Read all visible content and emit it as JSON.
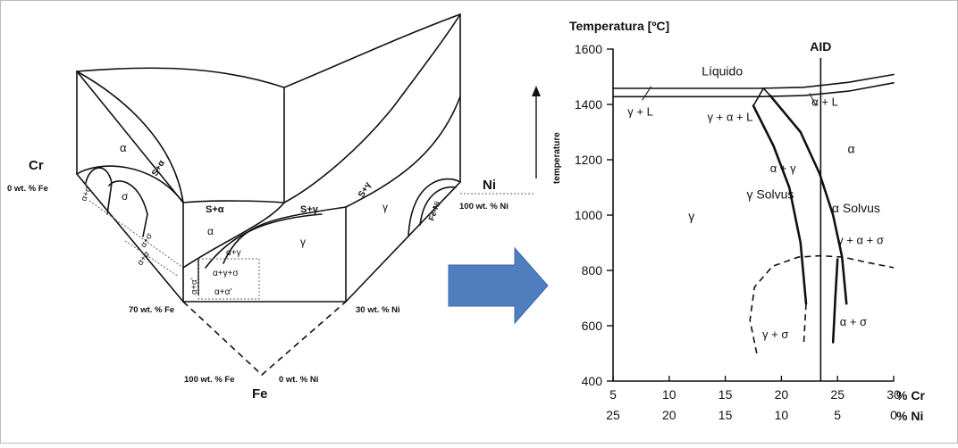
{
  "ternary": {
    "corner_cr_label": "Cr",
    "corner_cr_sub": "0 wt. % Fe",
    "corner_ni_label": "Ni",
    "corner_ni_sub": "100 wt. % Ni",
    "corner_fe_label": "Fe",
    "fe_left_sub": "100 wt. % Fe",
    "fe_right_sub": "0 wt. % Ni",
    "left_front_label": "70 wt. % Fe",
    "right_front_label": "30 wt. % Ni",
    "temperature_label": "temperature",
    "regions": {
      "s_alpha_top": "S+α",
      "alpha_top": "α",
      "alpha_sigma": "α+σ",
      "sigma": "σ",
      "alpha_sigma_b": "α+σ",
      "alpha_sigma_c": "α+σ",
      "s_alpha": "S+α",
      "s_gamma": "S+γ",
      "alpha_front": "α",
      "alpha_gamma": "α+γ",
      "gamma_front": "γ",
      "alpha_alpha_prime_v": "α+α'",
      "alpha_gamma_sigma": "α+γ+σ",
      "alpha_alpha_prime": "α+α'",
      "s_gamma_right": "S+γ",
      "gamma_right": "γ",
      "fe_ni": "Fe-Ni"
    }
  },
  "arrow": {
    "color": "#4f7fbf"
  },
  "chart_data": {
    "type": "phase-diagram",
    "ylabel": "Temperatura [ºC]",
    "ylim": [
      400,
      1600
    ],
    "yticks": [
      400,
      600,
      800,
      1000,
      1200,
      1400,
      1600
    ],
    "xlim": [
      5,
      30
    ],
    "xticks_cr": [
      5,
      10,
      15,
      20,
      25,
      30
    ],
    "xticks_ni": [
      25,
      20,
      15,
      10,
      5,
      0
    ],
    "xlabel_cr": "% Cr",
    "xlabel_ni": "% Ni",
    "aid_label": "AID",
    "aid_cr": 23.5,
    "region_labels": {
      "liquid": "Líquido",
      "gamma_l": "γ + L",
      "gamma_alpha_l": "γ + α + L",
      "alpha_l": "α + L",
      "alpha": "α",
      "alpha_gamma": "α + γ",
      "gamma_solvus": "γ  Solvus",
      "gamma": "γ",
      "alpha_solvus": "α  Solvus",
      "gamma_alpha_sigma": "γ + α + σ",
      "gamma_sigma": "γ + σ",
      "alpha_sigma": "α + σ"
    },
    "boundaries": {
      "liquidus_upper": [
        [
          5,
          1458
        ],
        [
          18,
          1458
        ],
        [
          22,
          1462
        ],
        [
          26,
          1480
        ],
        [
          30,
          1508
        ]
      ],
      "liquidus_lower": [
        [
          5,
          1428
        ],
        [
          18,
          1428
        ],
        [
          22,
          1432
        ],
        [
          26,
          1448
        ],
        [
          30,
          1478
        ]
      ],
      "peritectic_triangle": [
        [
          17.5,
          1395
        ],
        [
          18.4,
          1458
        ],
        [
          19,
          1432
        ]
      ],
      "gamma_solvus": [
        [
          17.5,
          1395
        ],
        [
          19.3,
          1250
        ],
        [
          20.7,
          1100
        ],
        [
          21.7,
          900
        ],
        [
          22.2,
          680
        ]
      ],
      "alpha_solvus": [
        [
          19,
          1432
        ],
        [
          21.7,
          1300
        ],
        [
          23.4,
          1150
        ],
        [
          24.6,
          1000
        ],
        [
          25.4,
          850
        ],
        [
          25.8,
          680
        ]
      ],
      "sigma_dome": [
        [
          17.8,
          500
        ],
        [
          17.2,
          620
        ],
        [
          17.6,
          740
        ],
        [
          19.2,
          815
        ],
        [
          21.5,
          848
        ],
        [
          23.5,
          853
        ],
        [
          25.5,
          848
        ],
        [
          27.5,
          830
        ],
        [
          30,
          810
        ]
      ],
      "gamma_sigma_left": [
        [
          22.2,
          680
        ],
        [
          22.0,
          540
        ]
      ],
      "alpha_sigma_right": [
        [
          25.0,
          840
        ],
        [
          24.8,
          700
        ],
        [
          24.6,
          540
        ]
      ]
    }
  }
}
